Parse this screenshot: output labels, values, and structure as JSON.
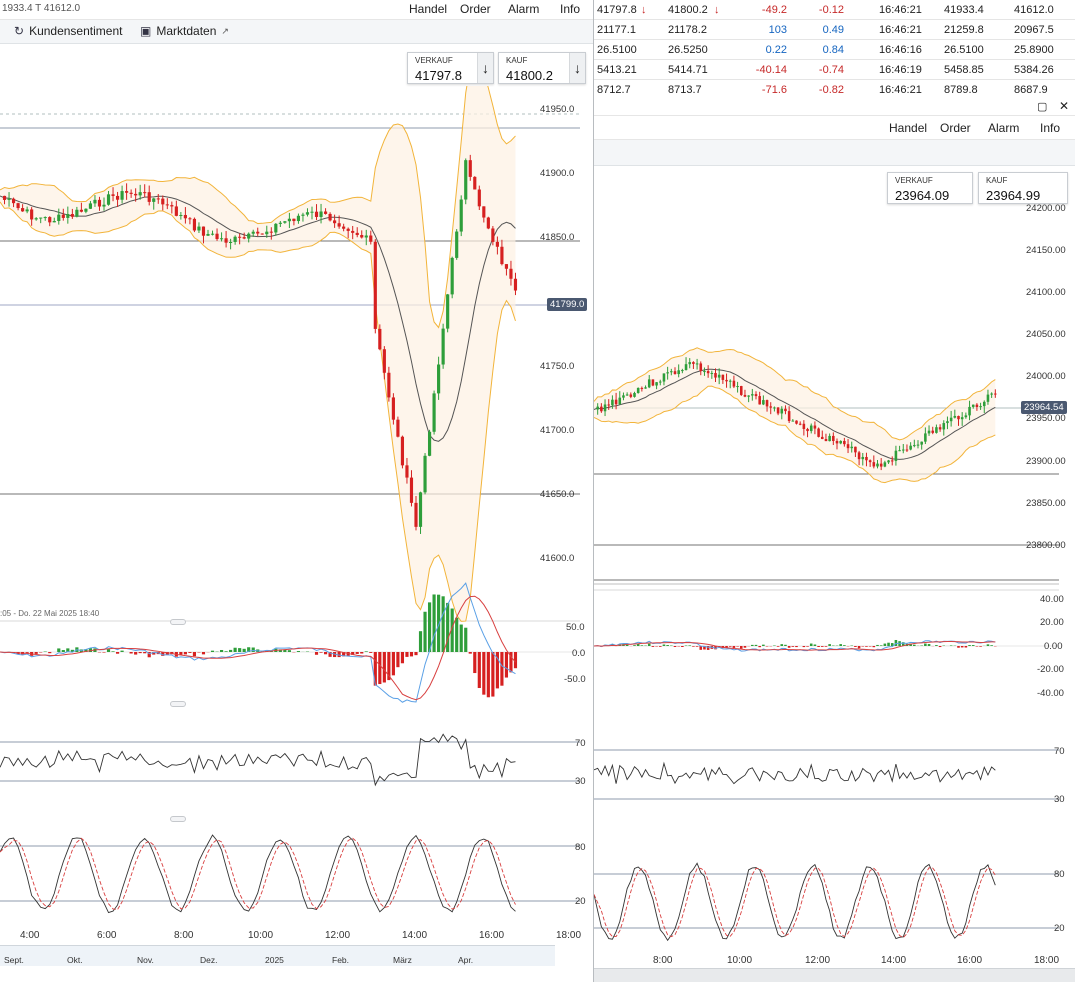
{
  "left": {
    "title": "1933.4 T 41612.0",
    "menu": [
      "Handel",
      "Order",
      "Alarm",
      "Info"
    ],
    "toolbar": {
      "sentiment": "Kundensentiment",
      "market_data": "Marktdaten"
    },
    "sell": {
      "label": "VERKAUF",
      "value": "41797.8"
    },
    "buy": {
      "label": "KAUF",
      "value": "41800.2"
    },
    "price_tag": "41799.0",
    "y_labels": [
      "41950.0",
      "41900.0",
      "41850.0",
      "41700.0",
      "41650.0",
      "41600.0",
      "41750.0"
    ],
    "range_caption": ":05 - Do. 22 Mai 2025 18:40",
    "macd_labels": [
      "50.0",
      "0.0",
      "-50.0"
    ],
    "rsi_labels": [
      "70",
      "30"
    ],
    "stoch_labels": [
      "80",
      "20"
    ],
    "x_labels": [
      "4:00",
      "6:00",
      "8:00",
      "10:00",
      "12:00",
      "14:00",
      "16:00",
      "18:00"
    ],
    "nav_labels": [
      "Sept.",
      "Okt.",
      "Nov.",
      "Dez.",
      "2025",
      "Feb.",
      "März",
      "Apr."
    ]
  },
  "watchlist": {
    "rows": [
      {
        "bid": "41797.8",
        "bid_arrow": "↓",
        "ask": "41800.2",
        "ask_arrow": "↓",
        "chg": "-49.2",
        "pct": "-0.12",
        "time": "16:46:21",
        "high": "41933.4",
        "low": "41612.0",
        "dir": "neg"
      },
      {
        "bid": "21177.1",
        "bid_arrow": "",
        "ask": "21178.2",
        "ask_arrow": "",
        "chg": "103",
        "pct": "0.49",
        "time": "16:46:21",
        "high": "21259.8",
        "low": "20967.5",
        "dir": "pos"
      },
      {
        "bid": "26.5100",
        "bid_arrow": "",
        "ask": "26.5250",
        "ask_arrow": "",
        "chg": "0.22",
        "pct": "0.84",
        "time": "16:46:16",
        "high": "26.5100",
        "low": "25.8900",
        "dir": "pos"
      },
      {
        "bid": "5413.21",
        "bid_arrow": "",
        "ask": "5414.71",
        "ask_arrow": "",
        "chg": "-40.14",
        "pct": "-0.74",
        "time": "16:46:19",
        "high": "5458.85",
        "low": "5384.26",
        "dir": "neg"
      },
      {
        "bid": "8712.7",
        "bid_arrow": "",
        "ask": "8713.7",
        "ask_arrow": "",
        "chg": "-71.6",
        "pct": "-0.82",
        "time": "16:46:21",
        "high": "8789.8",
        "low": "8687.9",
        "dir": "neg"
      }
    ]
  },
  "right": {
    "menu": [
      "Handel",
      "Order",
      "Alarm",
      "Info"
    ],
    "sell": {
      "label": "VERKAUF",
      "value": "23964.09"
    },
    "buy": {
      "label": "KAUF",
      "value": "23964.99"
    },
    "price_tag": "23964.54",
    "y_labels": [
      "24200.00",
      "24150.00",
      "24100.00",
      "24050.00",
      "24000.00",
      "23950.00",
      "23900.00",
      "23850.00",
      "23800.00"
    ],
    "macd_labels": [
      "40.00",
      "20.00",
      "0.00",
      "-20.00",
      "-40.00"
    ],
    "rsi_labels": [
      "70",
      "30"
    ],
    "stoch_labels": [
      "80",
      "20"
    ],
    "x_labels": [
      "8:00",
      "10:00",
      "12:00",
      "14:00",
      "16:00",
      "18:00"
    ]
  },
  "colors": {
    "up": "#2e9e3a",
    "down": "#d62020",
    "band": "#f2b43a",
    "ma": "#555555",
    "macd": "#5aa0e6",
    "signal": "#d84040",
    "tag": "#4a5870"
  }
}
